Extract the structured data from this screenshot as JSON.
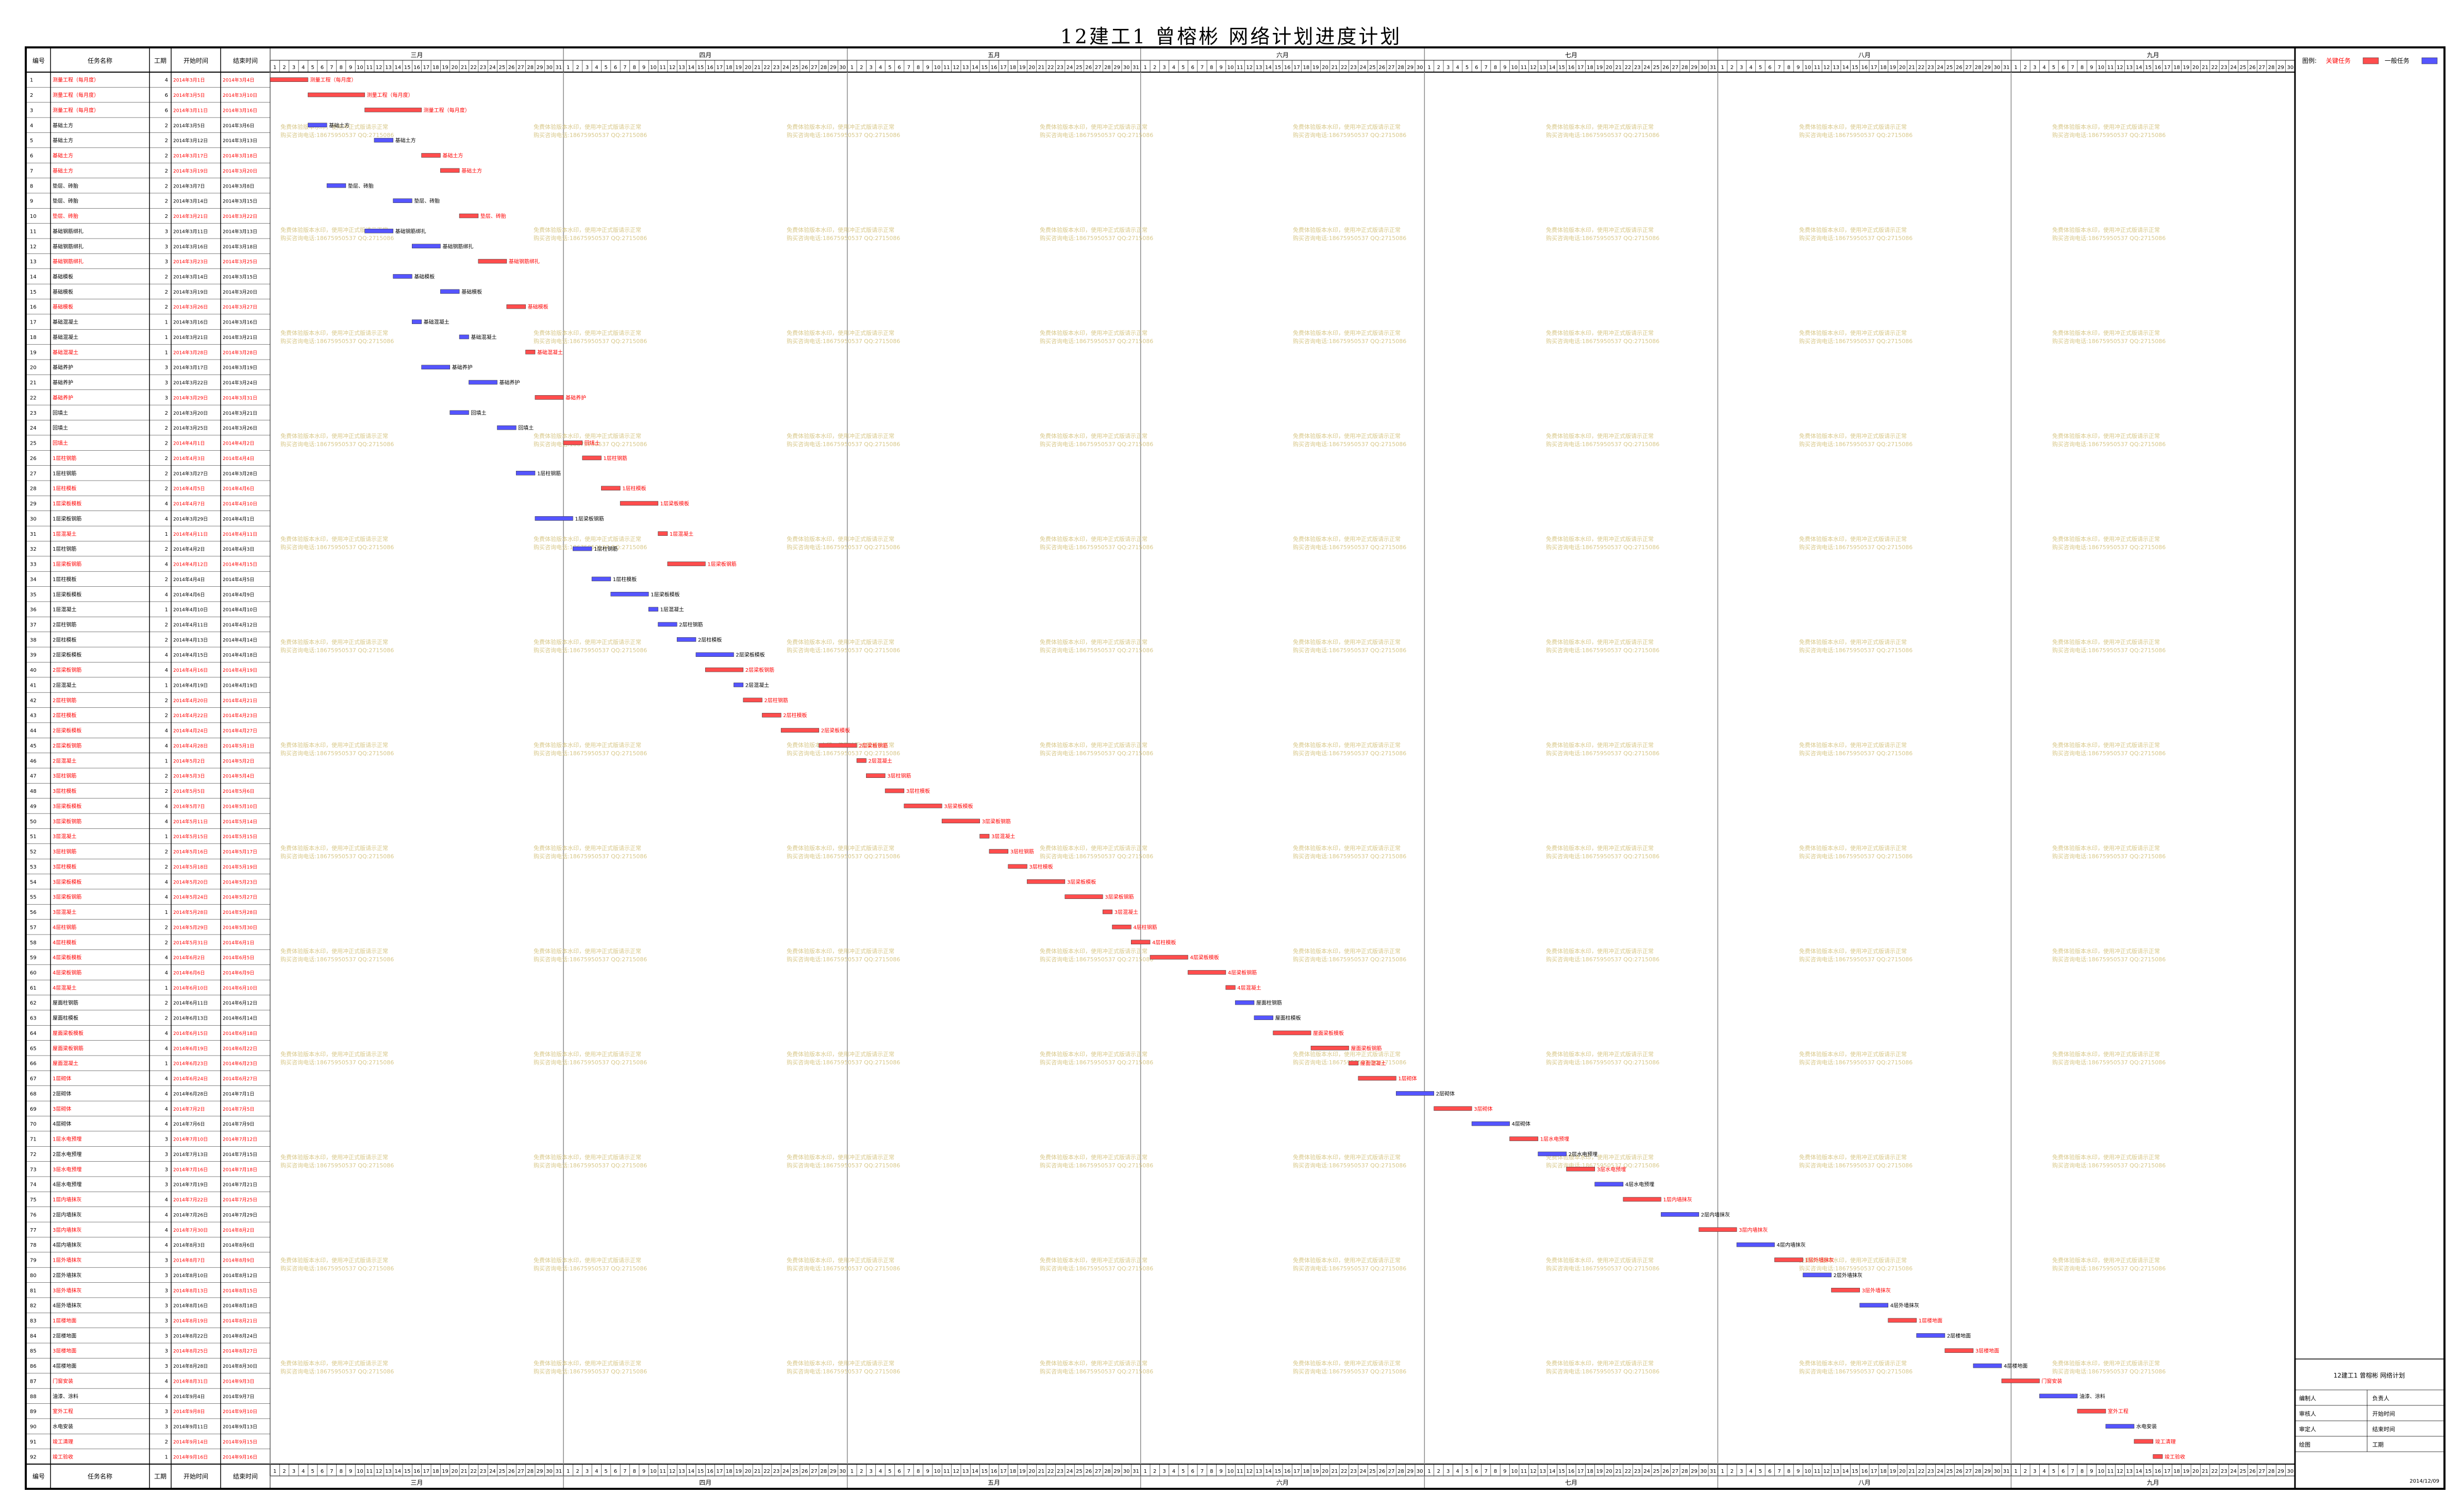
{
  "title": "12建工1 曾榕彬 网络计划进度计划",
  "table_headers": [
    "编号",
    "任务名称",
    "工期",
    "开始时间",
    "结束时间"
  ],
  "months": [
    "三月",
    "四月",
    "五月",
    "六月",
    "七月",
    "八月",
    "九月"
  ],
  "month_days": [
    31,
    30,
    31,
    30,
    31,
    31,
    30
  ],
  "legend": {
    "title": "图例:",
    "critical": "关键任务",
    "normal": "一般任务"
  },
  "info_box": {
    "heading": "12建工1 曾榕彬 网络计划",
    "rows": [
      {
        "label": "编制人",
        "value": "负责人"
      },
      {
        "label": "审核人",
        "value": "开始时间"
      },
      {
        "label": "审定人",
        "value": "结束时间"
      },
      {
        "label": "绘图",
        "value": "工期"
      }
    ],
    "footer": "2014/12/09"
  },
  "watermark": {
    "line1": "免费体验版本水印，使用冲正式版请示正常",
    "line2": "购买咨询电话:18675950537 QQ:2715086"
  },
  "colors": {
    "critical": "#ff4d4d",
    "normal": "#5555ff",
    "grid": "#000000",
    "critical_text": "#ff0000",
    "watermark": "#d8c88a"
  },
  "chart_data": {
    "type": "gantt",
    "start_date": "2014-03-01",
    "tasks": [
      {
        "id": 1,
        "name": "测量工程（每月度）",
        "dur": 4,
        "start": "2014年3月1日",
        "end": "2014年3月4日",
        "crit": true
      },
      {
        "id": 2,
        "name": "测量工程（每月度）",
        "dur": 6,
        "start": "2014年3月5日",
        "end": "2014年3月10日",
        "crit": true
      },
      {
        "id": 3,
        "name": "测量工程（每月度）",
        "dur": 6,
        "start": "2014年3月11日",
        "end": "2014年3月16日",
        "crit": true
      },
      {
        "id": 4,
        "name": "基础土方",
        "dur": 2,
        "start": "2014年3月5日",
        "end": "2014年3月6日",
        "crit": false
      },
      {
        "id": 5,
        "name": "基础土方",
        "dur": 2,
        "start": "2014年3月12日",
        "end": "2014年3月13日",
        "crit": false
      },
      {
        "id": 6,
        "name": "基础土方",
        "dur": 2,
        "start": "2014年3月17日",
        "end": "2014年3月18日",
        "crit": true
      },
      {
        "id": 7,
        "name": "基础土方",
        "dur": 2,
        "start": "2014年3月19日",
        "end": "2014年3月20日",
        "crit": true
      },
      {
        "id": 8,
        "name": "垫层、砖胎",
        "dur": 2,
        "start": "2014年3月7日",
        "end": "2014年3月8日",
        "crit": false
      },
      {
        "id": 9,
        "name": "垫层、砖胎",
        "dur": 2,
        "start": "2014年3月14日",
        "end": "2014年3月15日",
        "crit": false
      },
      {
        "id": 10,
        "name": "垫层、砖胎",
        "dur": 2,
        "start": "2014年3月21日",
        "end": "2014年3月22日",
        "crit": true
      },
      {
        "id": 11,
        "name": "基础钢筋绑扎",
        "dur": 3,
        "start": "2014年3月11日",
        "end": "2014年3月13日",
        "crit": false
      },
      {
        "id": 12,
        "name": "基础钢筋绑扎",
        "dur": 3,
        "start": "2014年3月16日",
        "end": "2014年3月18日",
        "crit": false
      },
      {
        "id": 13,
        "name": "基础钢筋绑扎",
        "dur": 3,
        "start": "2014年3月23日",
        "end": "2014年3月25日",
        "crit": true
      },
      {
        "id": 14,
        "name": "基础模板",
        "dur": 2,
        "start": "2014年3月14日",
        "end": "2014年3月15日",
        "crit": false
      },
      {
        "id": 15,
        "name": "基础模板",
        "dur": 2,
        "start": "2014年3月19日",
        "end": "2014年3月20日",
        "crit": false
      },
      {
        "id": 16,
        "name": "基础模板",
        "dur": 2,
        "start": "2014年3月26日",
        "end": "2014年3月27日",
        "crit": true
      },
      {
        "id": 17,
        "name": "基础混凝土",
        "dur": 1,
        "start": "2014年3月16日",
        "end": "2014年3月16日",
        "crit": false
      },
      {
        "id": 18,
        "name": "基础混凝土",
        "dur": 1,
        "start": "2014年3月21日",
        "end": "2014年3月21日",
        "crit": false
      },
      {
        "id": 19,
        "name": "基础混凝土",
        "dur": 1,
        "start": "2014年3月28日",
        "end": "2014年3月28日",
        "crit": true
      },
      {
        "id": 20,
        "name": "基础养护",
        "dur": 3,
        "start": "2014年3月17日",
        "end": "2014年3月19日",
        "crit": false
      },
      {
        "id": 21,
        "name": "基础养护",
        "dur": 3,
        "start": "2014年3月22日",
        "end": "2014年3月24日",
        "crit": false
      },
      {
        "id": 22,
        "name": "基础养护",
        "dur": 3,
        "start": "2014年3月29日",
        "end": "2014年3月31日",
        "crit": true
      },
      {
        "id": 23,
        "name": "回填土",
        "dur": 2,
        "start": "2014年3月20日",
        "end": "2014年3月21日",
        "crit": false
      },
      {
        "id": 24,
        "name": "回填土",
        "dur": 2,
        "start": "2014年3月25日",
        "end": "2014年3月26日",
        "crit": false
      },
      {
        "id": 25,
        "name": "回填土",
        "dur": 2,
        "start": "2014年4月1日",
        "end": "2014年4月2日",
        "crit": true
      },
      {
        "id": 26,
        "name": "1层柱钢筋",
        "dur": 2,
        "start": "2014年4月3日",
        "end": "2014年4月4日",
        "crit": true
      },
      {
        "id": 27,
        "name": "1层柱钢筋",
        "dur": 2,
        "start": "2014年3月27日",
        "end": "2014年3月28日",
        "crit": false
      },
      {
        "id": 28,
        "name": "1层柱模板",
        "dur": 2,
        "start": "2014年4月5日",
        "end": "2014年4月6日",
        "crit": true
      },
      {
        "id": 29,
        "name": "1层梁板模板",
        "dur": 4,
        "start": "2014年4月7日",
        "end": "2014年4月10日",
        "crit": true
      },
      {
        "id": 30,
        "name": "1层梁板钢筋",
        "dur": 4,
        "start": "2014年3月29日",
        "end": "2014年4月1日",
        "crit": false
      },
      {
        "id": 31,
        "name": "1层混凝土",
        "dur": 1,
        "start": "2014年4月11日",
        "end": "2014年4月11日",
        "crit": true
      },
      {
        "id": 32,
        "name": "1层柱钢筋",
        "dur": 2,
        "start": "2014年4月2日",
        "end": "2014年4月3日",
        "crit": false
      },
      {
        "id": 33,
        "name": "1层梁板钢筋",
        "dur": 4,
        "start": "2014年4月12日",
        "end": "2014年4月15日",
        "crit": true
      },
      {
        "id": 34,
        "name": "1层柱模板",
        "dur": 2,
        "start": "2014年4月4日",
        "end": "2014年4月5日",
        "crit": false
      },
      {
        "id": 35,
        "name": "1层梁板模板",
        "dur": 4,
        "start": "2014年4月6日",
        "end": "2014年4月9日",
        "crit": false
      },
      {
        "id": 36,
        "name": "1层混凝土",
        "dur": 1,
        "start": "2014年4月10日",
        "end": "2014年4月10日",
        "crit": false
      },
      {
        "id": 37,
        "name": "2层柱钢筋",
        "dur": 2,
        "start": "2014年4月11日",
        "end": "2014年4月12日",
        "crit": false
      },
      {
        "id": 38,
        "name": "2层柱模板",
        "dur": 2,
        "start": "2014年4月13日",
        "end": "2014年4月14日",
        "crit": false
      },
      {
        "id": 39,
        "name": "2层梁板模板",
        "dur": 4,
        "start": "2014年4月15日",
        "end": "2014年4月18日",
        "crit": false
      },
      {
        "id": 40,
        "name": "2层梁板钢筋",
        "dur": 4,
        "start": "2014年4月16日",
        "end": "2014年4月19日",
        "crit": true
      },
      {
        "id": 41,
        "name": "2层混凝土",
        "dur": 1,
        "start": "2014年4月19日",
        "end": "2014年4月19日",
        "crit": false
      },
      {
        "id": 42,
        "name": "2层柱钢筋",
        "dur": 2,
        "start": "2014年4月20日",
        "end": "2014年4月21日",
        "crit": true
      },
      {
        "id": 43,
        "name": "2层柱模板",
        "dur": 2,
        "start": "2014年4月22日",
        "end": "2014年4月23日",
        "crit": true
      },
      {
        "id": 44,
        "name": "2层梁板模板",
        "dur": 4,
        "start": "2014年4月24日",
        "end": "2014年4月27日",
        "crit": true
      },
      {
        "id": 45,
        "name": "2层梁板钢筋",
        "dur": 4,
        "start": "2014年4月28日",
        "end": "2014年5月1日",
        "crit": true
      },
      {
        "id": 46,
        "name": "2层混凝土",
        "dur": 1,
        "start": "2014年5月2日",
        "end": "2014年5月2日",
        "crit": true
      },
      {
        "id": 47,
        "name": "3层柱钢筋",
        "dur": 2,
        "start": "2014年5月3日",
        "end": "2014年5月4日",
        "crit": true
      },
      {
        "id": 48,
        "name": "3层柱模板",
        "dur": 2,
        "start": "2014年5月5日",
        "end": "2014年5月6日",
        "crit": true
      },
      {
        "id": 49,
        "name": "3层梁板模板",
        "dur": 4,
        "start": "2014年5月7日",
        "end": "2014年5月10日",
        "crit": true
      },
      {
        "id": 50,
        "name": "3层梁板钢筋",
        "dur": 4,
        "start": "2014年5月11日",
        "end": "2014年5月14日",
        "crit": true
      },
      {
        "id": 51,
        "name": "3层混凝土",
        "dur": 1,
        "start": "2014年5月15日",
        "end": "2014年5月15日",
        "crit": true
      },
      {
        "id": 52,
        "name": "3层柱钢筋",
        "dur": 2,
        "start": "2014年5月16日",
        "end": "2014年5月17日",
        "crit": true
      },
      {
        "id": 53,
        "name": "3层柱模板",
        "dur": 2,
        "start": "2014年5月18日",
        "end": "2014年5月19日",
        "crit": true
      },
      {
        "id": 54,
        "name": "3层梁板模板",
        "dur": 4,
        "start": "2014年5月20日",
        "end": "2014年5月23日",
        "crit": true
      },
      {
        "id": 55,
        "name": "3层梁板钢筋",
        "dur": 4,
        "start": "2014年5月24日",
        "end": "2014年5月27日",
        "crit": true
      },
      {
        "id": 56,
        "name": "3层混凝土",
        "dur": 1,
        "start": "2014年5月28日",
        "end": "2014年5月28日",
        "crit": true
      },
      {
        "id": 57,
        "name": "4层柱钢筋",
        "dur": 2,
        "start": "2014年5月29日",
        "end": "2014年5月30日",
        "crit": true
      },
      {
        "id": 58,
        "name": "4层柱模板",
        "dur": 2,
        "start": "2014年5月31日",
        "end": "2014年6月1日",
        "crit": true
      },
      {
        "id": 59,
        "name": "4层梁板模板",
        "dur": 4,
        "start": "2014年6月2日",
        "end": "2014年6月5日",
        "crit": true
      },
      {
        "id": 60,
        "name": "4层梁板钢筋",
        "dur": 4,
        "start": "2014年6月6日",
        "end": "2014年6月9日",
        "crit": true
      },
      {
        "id": 61,
        "name": "4层混凝土",
        "dur": 1,
        "start": "2014年6月10日",
        "end": "2014年6月10日",
        "crit": true
      },
      {
        "id": 62,
        "name": "屋面柱钢筋",
        "dur": 2,
        "start": "2014年6月11日",
        "end": "2014年6月12日",
        "crit": false
      },
      {
        "id": 63,
        "name": "屋面柱模板",
        "dur": 2,
        "start": "2014年6月13日",
        "end": "2014年6月14日",
        "crit": false
      },
      {
        "id": 64,
        "name": "屋面梁板模板",
        "dur": 4,
        "start": "2014年6月15日",
        "end": "2014年6月18日",
        "crit": true
      },
      {
        "id": 65,
        "name": "屋面梁板钢筋",
        "dur": 4,
        "start": "2014年6月19日",
        "end": "2014年6月22日",
        "crit": true
      },
      {
        "id": 66,
        "name": "屋面混凝土",
        "dur": 1,
        "start": "2014年6月23日",
        "end": "2014年6月23日",
        "crit": true
      },
      {
        "id": 67,
        "name": "1层砌体",
        "dur": 4,
        "start": "2014年6月24日",
        "end": "2014年6月27日",
        "crit": true
      },
      {
        "id": 68,
        "name": "2层砌体",
        "dur": 4,
        "start": "2014年6月28日",
        "end": "2014年7月1日",
        "crit": false
      },
      {
        "id": 69,
        "name": "3层砌体",
        "dur": 4,
        "start": "2014年7月2日",
        "end": "2014年7月5日",
        "crit": true
      },
      {
        "id": 70,
        "name": "4层砌体",
        "dur": 4,
        "start": "2014年7月6日",
        "end": "2014年7月9日",
        "crit": false
      },
      {
        "id": 71,
        "name": "1层水电预埋",
        "dur": 3,
        "start": "2014年7月10日",
        "end": "2014年7月12日",
        "crit": true
      },
      {
        "id": 72,
        "name": "2层水电预埋",
        "dur": 3,
        "start": "2014年7月13日",
        "end": "2014年7月15日",
        "crit": false
      },
      {
        "id": 73,
        "name": "3层水电预埋",
        "dur": 3,
        "start": "2014年7月16日",
        "end": "2014年7月18日",
        "crit": true
      },
      {
        "id": 74,
        "name": "4层水电预埋",
        "dur": 3,
        "start": "2014年7月19日",
        "end": "2014年7月21日",
        "crit": false
      },
      {
        "id": 75,
        "name": "1层内墙抹灰",
        "dur": 4,
        "start": "2014年7月22日",
        "end": "2014年7月25日",
        "crit": true
      },
      {
        "id": 76,
        "name": "2层内墙抹灰",
        "dur": 4,
        "start": "2014年7月26日",
        "end": "2014年7月29日",
        "crit": false
      },
      {
        "id": 77,
        "name": "3层内墙抹灰",
        "dur": 4,
        "start": "2014年7月30日",
        "end": "2014年8月2日",
        "crit": true
      },
      {
        "id": 78,
        "name": "4层内墙抹灰",
        "dur": 4,
        "start": "2014年8月3日",
        "end": "2014年8月6日",
        "crit": false
      },
      {
        "id": 79,
        "name": "1层外墙抹灰",
        "dur": 3,
        "start": "2014年8月7日",
        "end": "2014年8月9日",
        "crit": true
      },
      {
        "id": 80,
        "name": "2层外墙抹灰",
        "dur": 3,
        "start": "2014年8月10日",
        "end": "2014年8月12日",
        "crit": false
      },
      {
        "id": 81,
        "name": "3层外墙抹灰",
        "dur": 3,
        "start": "2014年8月13日",
        "end": "2014年8月15日",
        "crit": true
      },
      {
        "id": 82,
        "name": "4层外墙抹灰",
        "dur": 3,
        "start": "2014年8月16日",
        "end": "2014年8月18日",
        "crit": false
      },
      {
        "id": 83,
        "name": "1层楼地面",
        "dur": 3,
        "start": "2014年8月19日",
        "end": "2014年8月21日",
        "crit": true
      },
      {
        "id": 84,
        "name": "2层楼地面",
        "dur": 3,
        "start": "2014年8月22日",
        "end": "2014年8月24日",
        "crit": false
      },
      {
        "id": 85,
        "name": "3层楼地面",
        "dur": 3,
        "start": "2014年8月25日",
        "end": "2014年8月27日",
        "crit": true
      },
      {
        "id": 86,
        "name": "4层楼地面",
        "dur": 3,
        "start": "2014年8月28日",
        "end": "2014年8月30日",
        "crit": false
      },
      {
        "id": 87,
        "name": "门窗安装",
        "dur": 4,
        "start": "2014年8月31日",
        "end": "2014年9月3日",
        "crit": true
      },
      {
        "id": 88,
        "name": "油漆、涂料",
        "dur": 4,
        "start": "2014年9月4日",
        "end": "2014年9月7日",
        "crit": false
      },
      {
        "id": 89,
        "name": "室外工程",
        "dur": 3,
        "start": "2014年9月8日",
        "end": "2014年9月10日",
        "crit": true
      },
      {
        "id": 90,
        "name": "水电安装",
        "dur": 3,
        "start": "2014年9月11日",
        "end": "2014年9月13日",
        "crit": false
      },
      {
        "id": 91,
        "name": "竣工清理",
        "dur": 2,
        "start": "2014年9月14日",
        "end": "2014年9月15日",
        "crit": true
      },
      {
        "id": 92,
        "name": "竣工验收",
        "dur": 1,
        "start": "2014年9月16日",
        "end": "2014年9月16日",
        "crit": true
      }
    ]
  }
}
